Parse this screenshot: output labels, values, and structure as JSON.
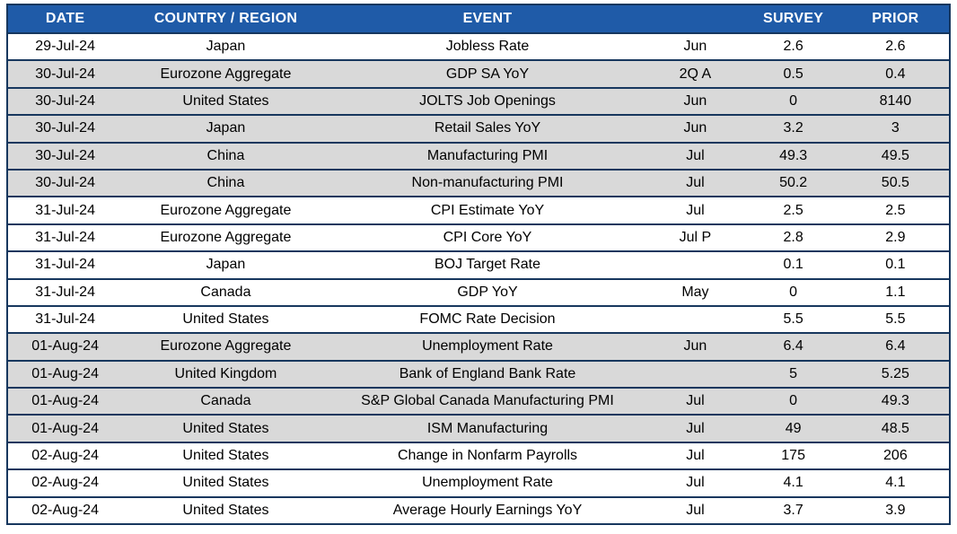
{
  "colors": {
    "header_bg": "#1F5BA8",
    "header_text": "#FFFFFF",
    "border": "#17375E",
    "row_shaded_bg": "#D9D9D9",
    "row_bg": "#FFFFFF",
    "text": "#000000"
  },
  "chart_data": {
    "type": "table",
    "columns": [
      "DATE",
      "COUNTRY / REGION",
      "EVENT",
      "",
      "SURVEY",
      "PRIOR"
    ],
    "rows": [
      {
        "date": "29-Jul-24",
        "country": "Japan",
        "event": "Jobless Rate",
        "period": "Jun",
        "survey": "2.6",
        "prior": "2.6",
        "shaded": false
      },
      {
        "date": "30-Jul-24",
        "country": "Eurozone Aggregate",
        "event": "GDP SA YoY",
        "period": "2Q A",
        "survey": "0.5",
        "prior": "0.4",
        "shaded": true
      },
      {
        "date": "30-Jul-24",
        "country": "United States",
        "event": "JOLTS Job Openings",
        "period": "Jun",
        "survey": "0",
        "prior": "8140",
        "shaded": true
      },
      {
        "date": "30-Jul-24",
        "country": "Japan",
        "event": "Retail Sales YoY",
        "period": "Jun",
        "survey": "3.2",
        "prior": "3",
        "shaded": true
      },
      {
        "date": "30-Jul-24",
        "country": "China",
        "event": "Manufacturing PMI",
        "period": "Jul",
        "survey": "49.3",
        "prior": "49.5",
        "shaded": true
      },
      {
        "date": "30-Jul-24",
        "country": "China",
        "event": "Non-manufacturing PMI",
        "period": "Jul",
        "survey": "50.2",
        "prior": "50.5",
        "shaded": true
      },
      {
        "date": "31-Jul-24",
        "country": "Eurozone Aggregate",
        "event": "CPI Estimate YoY",
        "period": "Jul",
        "survey": "2.5",
        "prior": "2.5",
        "shaded": false
      },
      {
        "date": "31-Jul-24",
        "country": "Eurozone Aggregate",
        "event": "CPI Core YoY",
        "period": "Jul P",
        "survey": "2.8",
        "prior": "2.9",
        "shaded": false
      },
      {
        "date": "31-Jul-24",
        "country": "Japan",
        "event": "BOJ Target Rate",
        "period": "",
        "survey": "0.1",
        "prior": "0.1",
        "shaded": false
      },
      {
        "date": "31-Jul-24",
        "country": "Canada",
        "event": "GDP YoY",
        "period": "May",
        "survey": "0",
        "prior": "1.1",
        "shaded": false
      },
      {
        "date": "31-Jul-24",
        "country": "United States",
        "event": "FOMC Rate Decision",
        "period": "",
        "survey": "5.5",
        "prior": "5.5",
        "shaded": false
      },
      {
        "date": "01-Aug-24",
        "country": "Eurozone Aggregate",
        "event": "Unemployment Rate",
        "period": "Jun",
        "survey": "6.4",
        "prior": "6.4",
        "shaded": true
      },
      {
        "date": "01-Aug-24",
        "country": "United Kingdom",
        "event": "Bank of England Bank Rate",
        "period": "",
        "survey": "5",
        "prior": "5.25",
        "shaded": true
      },
      {
        "date": "01-Aug-24",
        "country": "Canada",
        "event": "S&P Global Canada Manufacturing PMI",
        "period": "Jul",
        "survey": "0",
        "prior": "49.3",
        "shaded": true
      },
      {
        "date": "01-Aug-24",
        "country": "United States",
        "event": "ISM Manufacturing",
        "period": "Jul",
        "survey": "49",
        "prior": "48.5",
        "shaded": true
      },
      {
        "date": "02-Aug-24",
        "country": "United States",
        "event": "Change in Nonfarm Payrolls",
        "period": "Jul",
        "survey": "175",
        "prior": "206",
        "shaded": false
      },
      {
        "date": "02-Aug-24",
        "country": "United States",
        "event": "Unemployment Rate",
        "period": "Jul",
        "survey": "4.1",
        "prior": "4.1",
        "shaded": false
      },
      {
        "date": "02-Aug-24",
        "country": "United States",
        "event": "Average Hourly Earnings YoY",
        "period": "Jul",
        "survey": "3.7",
        "prior": "3.9",
        "shaded": false
      }
    ]
  }
}
